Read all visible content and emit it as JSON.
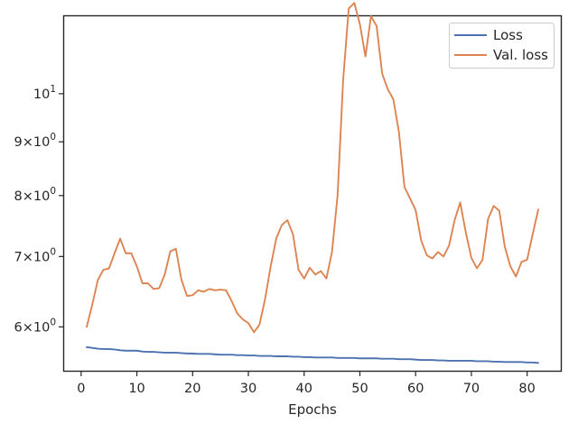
{
  "chart_data": {
    "type": "line",
    "xlabel": "Epochs",
    "ylabel": "",
    "title": "",
    "yscale": "log",
    "xlim": [
      -3.05,
      86.05
    ],
    "ylim": [
      5.45,
      11.85
    ],
    "x_ticks": [
      0,
      10,
      20,
      30,
      40,
      50,
      60,
      70,
      80
    ],
    "x_tick_labels": [
      "0",
      "10",
      "20",
      "30",
      "40",
      "50",
      "60",
      "70",
      "80"
    ],
    "y_ticks": [
      {
        "value": 6,
        "base": "6",
        "times": "×",
        "power": "10",
        "exp": "0"
      },
      {
        "value": 7,
        "base": "7",
        "times": "×",
        "power": "10",
        "exp": "0"
      },
      {
        "value": 8,
        "base": "8",
        "times": "×",
        "power": "10",
        "exp": "0"
      },
      {
        "value": 9,
        "base": "9",
        "times": "×",
        "power": "10",
        "exp": "0"
      },
      {
        "value": 10,
        "base": "",
        "times": "",
        "power": "10",
        "exp": "1"
      }
    ],
    "grid": false,
    "legend_position": "top-right",
    "x": [
      1,
      2,
      3,
      4,
      5,
      6,
      7,
      8,
      9,
      10,
      11,
      12,
      13,
      14,
      15,
      16,
      17,
      18,
      19,
      20,
      21,
      22,
      23,
      24,
      25,
      26,
      27,
      28,
      29,
      30,
      31,
      32,
      33,
      34,
      35,
      36,
      37,
      38,
      39,
      40,
      41,
      42,
      43,
      44,
      45,
      46,
      47,
      48,
      49,
      50,
      51,
      52,
      53,
      54,
      55,
      56,
      57,
      58,
      59,
      60,
      61,
      62,
      63,
      64,
      65,
      66,
      67,
      68,
      69,
      70,
      71,
      72,
      73,
      74,
      75,
      76,
      77,
      78,
      79,
      80,
      81,
      82
    ],
    "series": [
      {
        "name": "Loss",
        "color": "#4c72b0",
        "values": [
          5.74,
          5.73,
          5.72,
          5.715,
          5.715,
          5.71,
          5.7,
          5.695,
          5.695,
          5.695,
          5.685,
          5.68,
          5.68,
          5.675,
          5.67,
          5.67,
          5.67,
          5.665,
          5.66,
          5.66,
          5.655,
          5.655,
          5.655,
          5.65,
          5.645,
          5.645,
          5.645,
          5.64,
          5.64,
          5.635,
          5.635,
          5.63,
          5.63,
          5.63,
          5.625,
          5.625,
          5.625,
          5.62,
          5.62,
          5.615,
          5.615,
          5.61,
          5.61,
          5.61,
          5.61,
          5.605,
          5.605,
          5.605,
          5.605,
          5.6,
          5.6,
          5.6,
          5.6,
          5.595,
          5.595,
          5.595,
          5.59,
          5.59,
          5.59,
          5.585,
          5.58,
          5.58,
          5.58,
          5.575,
          5.575,
          5.57,
          5.57,
          5.57,
          5.57,
          5.57,
          5.565,
          5.565,
          5.565,
          5.56,
          5.56,
          5.555,
          5.555,
          5.555,
          5.555,
          5.55,
          5.55,
          5.545
        ]
      },
      {
        "name": "Val. loss",
        "color": "#dd8452",
        "values": [
          6.0,
          6.3,
          6.65,
          6.8,
          6.82,
          7.05,
          7.28,
          7.05,
          7.05,
          6.85,
          6.6,
          6.6,
          6.52,
          6.53,
          6.73,
          7.08,
          7.12,
          6.65,
          6.42,
          6.43,
          6.5,
          6.48,
          6.52,
          6.5,
          6.51,
          6.5,
          6.35,
          6.18,
          6.1,
          6.05,
          5.93,
          6.03,
          6.38,
          6.85,
          7.28,
          7.5,
          7.58,
          7.35,
          6.8,
          6.67,
          6.83,
          6.73,
          6.78,
          6.67,
          7.07,
          8.0,
          10.3,
          12.05,
          12.2,
          11.65,
          10.85,
          11.85,
          11.6,
          10.45,
          10.1,
          9.88,
          9.2,
          8.15,
          7.95,
          7.75,
          7.25,
          7.02,
          6.97,
          7.07,
          7.0,
          7.17,
          7.58,
          7.88,
          7.38,
          6.98,
          6.82,
          6.95,
          7.6,
          7.82,
          7.74,
          7.15,
          6.85,
          6.7,
          6.92,
          6.95,
          7.35,
          7.76
        ]
      }
    ]
  }
}
